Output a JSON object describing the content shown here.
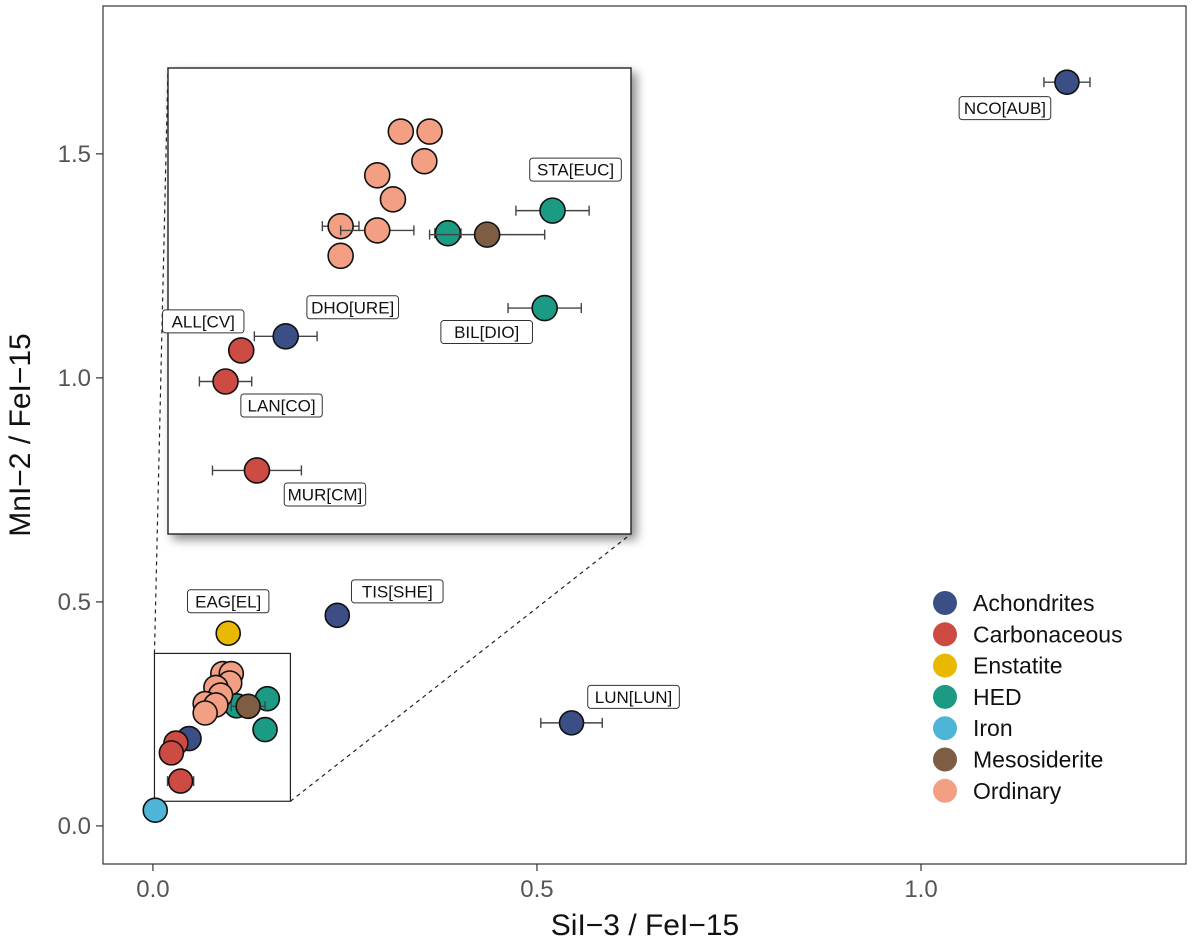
{
  "chart_data": {
    "type": "scatter",
    "title": "",
    "xlabel": "SiI−3 / FeI−15",
    "ylabel": "MnI−2 / FeI−15",
    "xlim": [
      -0.065,
      1.345
    ],
    "ylim": [
      -0.085,
      1.83
    ],
    "x_ticks": [
      0.0,
      0.5,
      1.0
    ],
    "x_tick_labels": [
      "0.0",
      "0.5",
      "1.0"
    ],
    "y_ticks": [
      0.0,
      0.5,
      1.0,
      1.5
    ],
    "y_tick_labels": [
      "0.0",
      "0.5",
      "1.0",
      "1.5"
    ],
    "grid": false,
    "legend_position": "bottom-right",
    "groups": [
      {
        "name": "Achondrites",
        "color": "#3b4f86"
      },
      {
        "name": "Carbonaceous",
        "color": "#cc4c44"
      },
      {
        "name": "Enstatite",
        "color": "#e8b900"
      },
      {
        "name": "HED",
        "color": "#1b9a84"
      },
      {
        "name": "Iron",
        "color": "#4eb5d6"
      },
      {
        "name": "Mesosiderite",
        "color": "#7e5d45"
      },
      {
        "name": "Ordinary",
        "color": "#f39f84"
      }
    ],
    "points": [
      {
        "label": "NCO[AUB]",
        "group": "Achondrites",
        "x": 1.19,
        "y": 1.66,
        "xerr": 0.03,
        "yerr": 0.02
      },
      {
        "label": "TIS[SHE]",
        "group": "Achondrites",
        "x": 0.24,
        "y": 0.47,
        "xerr": 0.015,
        "yerr": 0.01
      },
      {
        "label": "LUN[LUN]",
        "group": "Achondrites",
        "x": 0.545,
        "y": 0.23,
        "xerr": 0.04,
        "yerr": 0.01
      },
      {
        "label": "EAG[EL]",
        "group": "Enstatite",
        "x": 0.098,
        "y": 0.43,
        "xerr": 0,
        "yerr": 0
      },
      {
        "label": "",
        "group": "Iron",
        "x": 0.003,
        "y": 0.035,
        "xerr": 0,
        "yerr": 0
      },
      {
        "label": "DHO[URE]",
        "group": "Achondrites",
        "x": 0.047,
        "y": 0.195,
        "xerr": 0.012,
        "yerr": 0.004
      },
      {
        "label": "ALL[CV]",
        "group": "Carbonaceous",
        "x": 0.03,
        "y": 0.185,
        "xerr": 0,
        "yerr": 0
      },
      {
        "label": "LAN[CO]",
        "group": "Carbonaceous",
        "x": 0.024,
        "y": 0.163,
        "xerr": 0.01,
        "yerr": 0.003
      },
      {
        "label": "MUR[CM]",
        "group": "Carbonaceous",
        "x": 0.036,
        "y": 0.1,
        "xerr": 0.017,
        "yerr": 0.005
      },
      {
        "label": "STA[EUC]",
        "group": "HED",
        "x": 0.149,
        "y": 0.284,
        "xerr": 0.014,
        "yerr": 0.004
      },
      {
        "label": "BIL[DIO]",
        "group": "HED",
        "x": 0.146,
        "y": 0.215,
        "xerr": 0.014,
        "yerr": 0.004
      },
      {
        "label": "",
        "group": "HED",
        "x": 0.109,
        "y": 0.268,
        "xerr": 0.005,
        "yerr": 0.003
      },
      {
        "label": "",
        "group": "Mesosiderite",
        "x": 0.124,
        "y": 0.267,
        "xerr": 0.022,
        "yerr": 0.005
      },
      {
        "label": "",
        "group": "Ordinary",
        "x": 0.091,
        "y": 0.34,
        "xerr": 0,
        "yerr": 0
      },
      {
        "label": "",
        "group": "Ordinary",
        "x": 0.102,
        "y": 0.34,
        "xerr": 0,
        "yerr": 0
      },
      {
        "label": "",
        "group": "Ordinary",
        "x": 0.1,
        "y": 0.319,
        "xerr": 0,
        "yerr": 0
      },
      {
        "label": "",
        "group": "Ordinary",
        "x": 0.082,
        "y": 0.309,
        "xerr": 0,
        "yerr": 0
      },
      {
        "label": "",
        "group": "Ordinary",
        "x": 0.088,
        "y": 0.292,
        "xerr": 0.004,
        "yerr": 0.003
      },
      {
        "label": "",
        "group": "Ordinary",
        "x": 0.068,
        "y": 0.273,
        "xerr": 0.007,
        "yerr": 0.003
      },
      {
        "label": "",
        "group": "Ordinary",
        "x": 0.082,
        "y": 0.27,
        "xerr": 0.014,
        "yerr": 0.005
      },
      {
        "label": "",
        "group": "Ordinary",
        "x": 0.068,
        "y": 0.252,
        "xerr": 0,
        "yerr": 0
      }
    ],
    "inset": {
      "source_region": {
        "xlim": [
          0.002,
          0.179
        ],
        "ylim": [
          0.055,
          0.385
        ]
      },
      "points": [
        {
          "label": "",
          "group": "Ordinary",
          "x": 0.091,
          "y": 0.34,
          "xerr": 0,
          "yerr": 0
        },
        {
          "label": "",
          "group": "Ordinary",
          "x": 0.102,
          "y": 0.34,
          "xerr": 0,
          "yerr": 0
        },
        {
          "label": "",
          "group": "Ordinary",
          "x": 0.1,
          "y": 0.319,
          "xerr": 0,
          "yerr": 0
        },
        {
          "label": "",
          "group": "Ordinary",
          "x": 0.082,
          "y": 0.309,
          "xerr": 0,
          "yerr": 0
        },
        {
          "label": "",
          "group": "Ordinary",
          "x": 0.088,
          "y": 0.292,
          "xerr": 0.004,
          "yerr": 0.003
        },
        {
          "label": "",
          "group": "Ordinary",
          "x": 0.068,
          "y": 0.273,
          "xerr": 0.007,
          "yerr": 0.003
        },
        {
          "label": "",
          "group": "Ordinary",
          "x": 0.082,
          "y": 0.27,
          "xerr": 0.014,
          "yerr": 0.005
        },
        {
          "label": "",
          "group": "Ordinary",
          "x": 0.068,
          "y": 0.252,
          "xerr": 0,
          "yerr": 0
        },
        {
          "label": "STA[EUC]",
          "group": "HED",
          "x": 0.149,
          "y": 0.284,
          "xerr": 0.014,
          "yerr": 0.004
        },
        {
          "label": "",
          "group": "HED",
          "x": 0.109,
          "y": 0.268,
          "xerr": 0.005,
          "yerr": 0.003
        },
        {
          "label": "",
          "group": "Mesosiderite",
          "x": 0.124,
          "y": 0.267,
          "xerr": 0.022,
          "yerr": 0.005
        },
        {
          "label": "BIL[DIO]",
          "group": "HED",
          "x": 0.146,
          "y": 0.215,
          "xerr": 0.014,
          "yerr": 0.004
        },
        {
          "label": "DHO[URE]",
          "group": "Achondrites",
          "x": 0.047,
          "y": 0.195,
          "xerr": 0.012,
          "yerr": 0.004
        },
        {
          "label": "ALL[CV]",
          "group": "Carbonaceous",
          "x": 0.03,
          "y": 0.185,
          "xerr": 0,
          "yerr": 0
        },
        {
          "label": "LAN[CO]",
          "group": "Carbonaceous",
          "x": 0.024,
          "y": 0.163,
          "xerr": 0.01,
          "yerr": 0.003
        },
        {
          "label": "MUR[CM]",
          "group": "Carbonaceous",
          "x": 0.036,
          "y": 0.1,
          "xerr": 0.017,
          "yerr": 0.005
        }
      ]
    }
  }
}
